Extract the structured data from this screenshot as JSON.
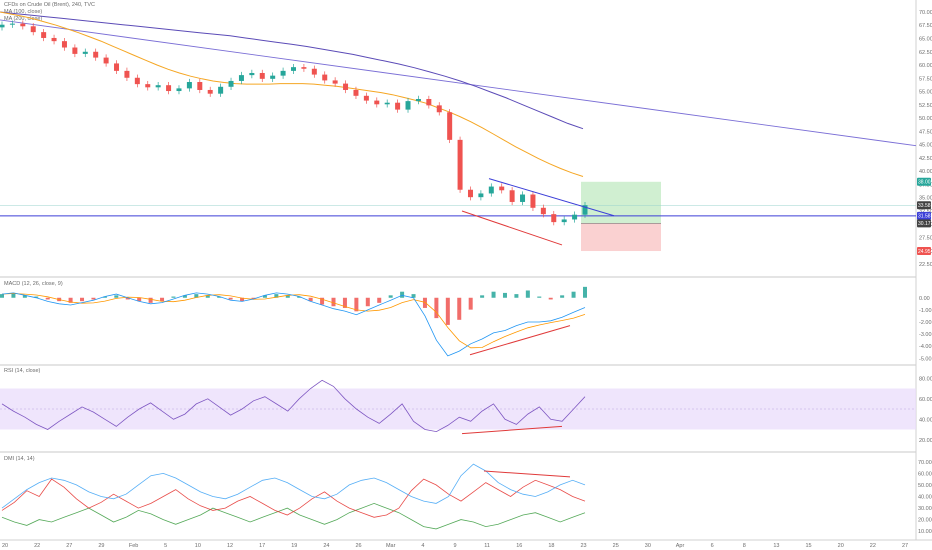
{
  "chart_data": {
    "type": "candlestick",
    "symbol_line": "CFDs on Crude Oil (Brent), 240, TVC",
    "ma_labels": [
      "MA (100, close)",
      "MA (200, close)"
    ],
    "colors": {
      "up": "#26a69a",
      "down": "#ef5350",
      "ma100": "#f5a623",
      "ma200": "#5b4bb7",
      "trend": "#3c3fd8",
      "divergence": "#e03a3a",
      "rsi_band": "#e9dcfb",
      "rsi_line": "#7e57c2",
      "dmi_plus": "#e53935",
      "dmi_minus": "#43a047",
      "adx": "#42a5f5",
      "macd_line": "#2196f3",
      "signal_line": "#ff9800"
    },
    "price_axis": {
      "ticks": [
        "70.00",
        "67.50",
        "65.00",
        "62.50",
        "60.00",
        "57.50",
        "55.00",
        "52.50",
        "50.00",
        "47.50",
        "45.00",
        "42.50",
        "40.00",
        "37.50",
        "35.00",
        "32.50",
        "30.00",
        "27.50",
        "25.00",
        "22.50"
      ],
      "ylim": [
        21,
        71.5
      ]
    },
    "badges": [
      {
        "text": "38.00",
        "value": 38.0,
        "color": "#26a69a"
      },
      {
        "text": "33.58",
        "value": 33.58,
        "color": "#424242"
      },
      {
        "text": "31.58",
        "value": 31.58,
        "color": "#3c3fd8"
      },
      {
        "text": "30.17",
        "value": 30.17,
        "color": "#424242"
      },
      {
        "text": "24.95",
        "value": 24.95,
        "color": "#ef5350"
      }
    ],
    "x_axis_labels": [
      "20",
      "22",
      "27",
      "29",
      "Feb",
      "5",
      "10",
      "12",
      "17",
      "19",
      "24",
      "26",
      "Mar",
      "4",
      "9",
      "11",
      "16",
      "18",
      "23",
      "25",
      "30",
      "Apr",
      "6",
      "8",
      "13",
      "15",
      "20",
      "22",
      "27"
    ],
    "price_close": [
      67.6,
      67.8,
      67.3,
      66.2,
      65.1,
      64.5,
      63.3,
      62.1,
      62.5,
      61.4,
      60.3,
      58.9,
      57.6,
      56.4,
      55.8,
      56.2,
      55.1,
      55.6,
      56.8,
      55.3,
      54.6,
      55.9,
      57.0,
      58.1,
      58.5,
      57.4,
      58.0,
      58.9,
      59.6,
      59.3,
      58.2,
      57.1,
      56.5,
      55.3,
      54.2,
      53.3,
      52.6,
      52.9,
      51.6,
      53.2,
      53.6,
      52.4,
      51.1,
      45.9,
      36.5,
      35.1,
      35.8,
      37.1,
      36.4,
      34.2,
      35.6,
      33.1,
      31.9,
      30.4,
      30.9,
      31.8,
      33.58
    ],
    "ma100": [
      70.0,
      69.6,
      69.2,
      68.7,
      68.1,
      67.5,
      66.8,
      66.1,
      65.3,
      64.5,
      63.6,
      62.7,
      61.8,
      60.9,
      60.0,
      59.2,
      58.5,
      57.9,
      57.4,
      57.0,
      56.7,
      56.5,
      56.4,
      56.4,
      56.4,
      56.5,
      56.5,
      56.5,
      56.4,
      56.2,
      56.0,
      55.7,
      55.4,
      55.1,
      54.8,
      54.4,
      53.9,
      53.4,
      52.8,
      52.0,
      51.2,
      50.3,
      49.3,
      48.2,
      47.0,
      45.8,
      44.6,
      43.5,
      42.4,
      41.4,
      40.5,
      39.7,
      39.0
    ],
    "ma200": [
      70.0,
      69.7,
      69.4,
      69.1,
      68.8,
      68.5,
      68.2,
      67.9,
      67.6,
      67.3,
      67.0,
      66.7,
      66.4,
      66.1,
      65.8,
      65.5,
      65.1,
      64.7,
      64.3,
      63.9,
      63.5,
      63.0,
      62.5,
      62.0,
      61.4,
      60.8,
      60.2,
      59.5,
      58.7,
      57.9,
      57.0,
      56.0,
      54.9,
      53.8,
      52.6,
      51.4,
      50.2,
      49.0,
      48.0
    ],
    "macd_label": "MACD (12, 26, close, 9)",
    "macd_axis": [
      "0.00",
      "-1.00",
      "-2.00",
      "-3.00",
      "-4.00",
      "-5.00"
    ],
    "macd_hist": [
      0.3,
      0.4,
      0.2,
      0.1,
      -0.1,
      -0.2,
      -0.3,
      -0.2,
      -0.1,
      0.1,
      0.2,
      -0.1,
      -0.2,
      -0.3,
      -0.2,
      0.1,
      0.2,
      0.3,
      0.2,
      0.1,
      -0.1,
      -0.2,
      -0.1,
      0.2,
      0.3,
      0.2,
      0.1,
      -0.2,
      -0.4,
      -0.5,
      -0.6,
      -0.8,
      -0.5,
      -0.3,
      0.2,
      0.5,
      0.3,
      -0.6,
      -1.2,
      -1.6,
      -1.3,
      -0.7,
      0.2,
      0.5,
      0.4,
      0.3,
      0.6,
      0.1,
      -0.1,
      0.2,
      0.5,
      0.9
    ],
    "rsi_label": "RSI (14, close)",
    "rsi_axis": [
      "80.00",
      "60.00",
      "40.00",
      "20.00"
    ],
    "rsi_values": [
      55,
      48,
      42,
      35,
      30,
      38,
      45,
      52,
      47,
      40,
      33,
      42,
      50,
      56,
      48,
      40,
      45,
      55,
      60,
      52,
      44,
      50,
      58,
      62,
      55,
      48,
      60,
      70,
      78,
      72,
      60,
      50,
      42,
      36,
      45,
      55,
      38,
      30,
      28,
      34,
      42,
      38,
      48,
      55,
      40,
      35,
      45,
      52,
      40,
      38,
      50,
      62
    ],
    "dmi_label": "DMI (14, 14)",
    "dmi_axis": [
      "70.000",
      "60.000",
      "50.000",
      "40.000",
      "30.000",
      "20.000",
      "10.000"
    ],
    "dmi_plus": [
      28,
      35,
      45,
      40,
      55,
      48,
      38,
      30,
      35,
      42,
      36,
      30,
      34,
      40,
      46,
      38,
      32,
      28,
      30,
      36,
      40,
      34,
      28,
      24,
      30,
      38,
      44,
      36,
      30,
      26,
      22,
      24,
      30,
      45,
      55,
      50,
      42,
      36,
      44,
      52,
      46,
      40,
      48,
      54,
      50,
      46,
      40,
      36
    ],
    "dmi_minus": [
      22,
      18,
      15,
      20,
      18,
      22,
      26,
      30,
      24,
      18,
      22,
      28,
      25,
      20,
      16,
      20,
      24,
      30,
      26,
      22,
      18,
      22,
      26,
      30,
      24,
      20,
      16,
      20,
      26,
      30,
      34,
      30,
      26,
      20,
      14,
      12,
      16,
      20,
      18,
      14,
      16,
      20,
      24,
      26,
      22,
      18,
      22,
      26
    ],
    "adx": [
      30,
      38,
      46,
      52,
      56,
      54,
      50,
      44,
      40,
      38,
      42,
      50,
      58,
      60,
      56,
      50,
      44,
      40,
      38,
      42,
      48,
      54,
      56,
      52,
      46,
      40,
      38,
      42,
      50,
      54,
      56,
      52,
      46,
      40,
      36,
      34,
      40,
      58,
      68,
      62,
      52,
      46,
      42,
      40,
      44,
      50,
      54,
      50
    ]
  }
}
